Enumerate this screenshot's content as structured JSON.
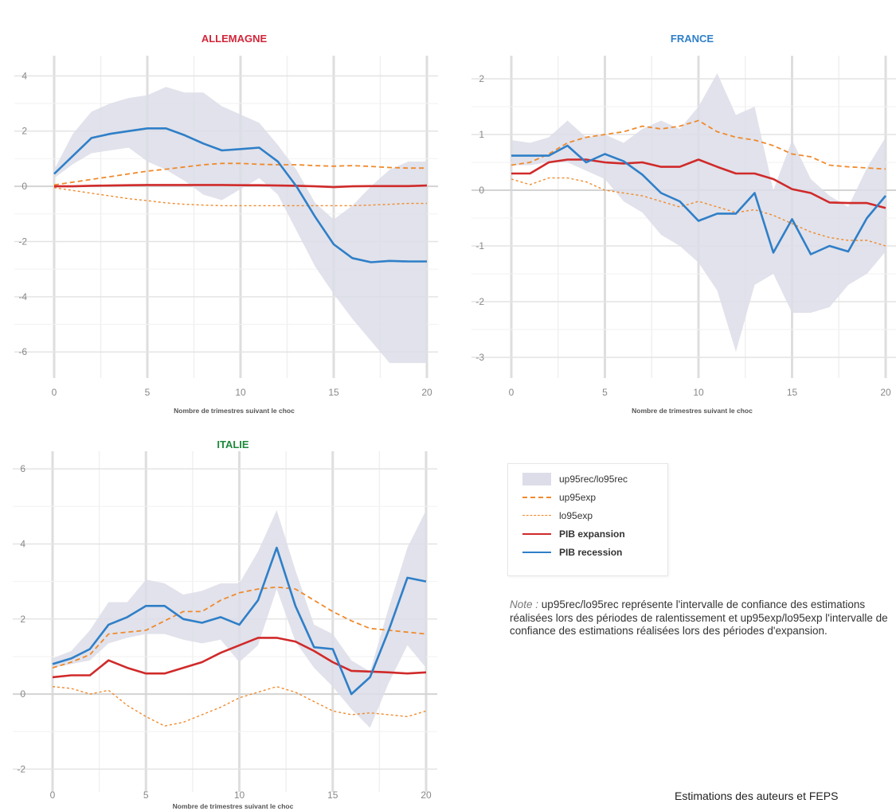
{
  "chart_data": [
    {
      "type": "line",
      "title": "ALLEMAGNE",
      "title_color": "#d2263a",
      "xlabel": "Nombre de trimestres suivant le choc",
      "ylabel": "",
      "x": [
        0,
        1,
        2,
        3,
        4,
        5,
        6,
        7,
        8,
        9,
        10,
        11,
        12,
        13,
        14,
        15,
        16,
        17,
        18,
        19,
        20
      ],
      "xlim": [
        0,
        20
      ],
      "ylim": [
        -6.8,
        4.5
      ],
      "xticks": [
        0,
        5,
        10,
        15,
        20
      ],
      "yticks": [
        -6,
        -4,
        -2,
        0,
        2,
        4
      ],
      "band": {
        "name": "up95rec/lo95rec",
        "upper": [
          0.6,
          1.9,
          2.7,
          3.0,
          3.2,
          3.3,
          3.6,
          3.4,
          3.4,
          2.9,
          2.6,
          2.3,
          1.5,
          0.6,
          -0.6,
          -1.2,
          -0.7,
          0.0,
          0.6,
          0.9,
          0.9
        ],
        "lower": [
          0.3,
          0.8,
          1.2,
          1.3,
          1.4,
          0.9,
          0.6,
          0.2,
          -0.3,
          -0.5,
          -0.1,
          0.3,
          -0.3,
          -1.6,
          -2.9,
          -3.9,
          -4.8,
          -5.6,
          -6.4,
          -6.4,
          -6.4
        ]
      },
      "series": [
        {
          "name": "up95exp",
          "values": [
            0.05,
            0.15,
            0.25,
            0.35,
            0.45,
            0.55,
            0.62,
            0.7,
            0.78,
            0.83,
            0.83,
            0.8,
            0.78,
            0.78,
            0.75,
            0.73,
            0.75,
            0.72,
            0.68,
            0.66,
            0.66
          ]
        },
        {
          "name": "lo95exp",
          "values": [
            -0.05,
            -0.15,
            -0.25,
            -0.35,
            -0.45,
            -0.52,
            -0.6,
            -0.65,
            -0.68,
            -0.7,
            -0.7,
            -0.7,
            -0.7,
            -0.7,
            -0.7,
            -0.7,
            -0.7,
            -0.68,
            -0.65,
            -0.62,
            -0.62
          ]
        },
        {
          "name": "PIB expansion",
          "values": [
            0.0,
            0.0,
            0.02,
            0.03,
            0.04,
            0.05,
            0.05,
            0.05,
            0.05,
            0.05,
            0.04,
            0.04,
            0.03,
            0.02,
            0.0,
            -0.03,
            0.0,
            0.01,
            0.01,
            0.01,
            0.03
          ]
        },
        {
          "name": "PIB recession",
          "values": [
            0.45,
            1.1,
            1.75,
            1.9,
            2.0,
            2.1,
            2.1,
            1.85,
            1.55,
            1.3,
            1.35,
            1.4,
            0.9,
            0.0,
            -1.1,
            -2.1,
            -2.6,
            -2.75,
            -2.7,
            -2.72,
            -2.72
          ]
        }
      ]
    },
    {
      "type": "line",
      "title": "FRANCE",
      "title_color": "#2f7fc8",
      "xlabel": "Nombre de trimestres suivant le choc",
      "ylabel": "",
      "x": [
        0,
        1,
        2,
        3,
        4,
        5,
        6,
        7,
        8,
        9,
        10,
        11,
        12,
        13,
        14,
        15,
        16,
        17,
        18,
        19,
        20
      ],
      "xlim": [
        0,
        20
      ],
      "ylim": [
        -3.3,
        2.3
      ],
      "xticks": [
        0,
        5,
        10,
        15,
        20
      ],
      "yticks": [
        -3,
        -2,
        -1,
        0,
        1,
        2
      ],
      "band": {
        "name": "up95rec/lo95rec",
        "upper": [
          0.9,
          0.85,
          0.95,
          1.25,
          0.95,
          1.0,
          0.85,
          1.1,
          1.25,
          1.1,
          1.5,
          2.1,
          1.35,
          1.5,
          0.0,
          0.9,
          0.2,
          -0.1,
          -0.3,
          0.4,
          0.95
        ],
        "lower": [
          0.45,
          0.45,
          0.5,
          0.5,
          0.35,
          0.2,
          -0.2,
          -0.4,
          -0.8,
          -1.0,
          -1.3,
          -1.8,
          -2.9,
          -1.7,
          -1.5,
          -2.2,
          -2.2,
          -2.1,
          -1.7,
          -1.5,
          -1.1
        ]
      },
      "series": [
        {
          "name": "up95exp",
          "values": [
            0.45,
            0.5,
            0.65,
            0.85,
            0.95,
            1.0,
            1.05,
            1.15,
            1.1,
            1.15,
            1.25,
            1.05,
            0.95,
            0.9,
            0.8,
            0.65,
            0.6,
            0.45,
            0.42,
            0.4,
            0.38
          ]
        },
        {
          "name": "lo95exp",
          "values": [
            0.2,
            0.1,
            0.22,
            0.22,
            0.15,
            0.0,
            -0.05,
            -0.1,
            -0.2,
            -0.3,
            -0.2,
            -0.3,
            -0.4,
            -0.35,
            -0.45,
            -0.6,
            -0.75,
            -0.85,
            -0.9,
            -0.9,
            -1.0
          ]
        },
        {
          "name": "PIB expansion",
          "values": [
            0.3,
            0.3,
            0.5,
            0.55,
            0.55,
            0.5,
            0.48,
            0.5,
            0.42,
            0.42,
            0.55,
            0.42,
            0.3,
            0.3,
            0.2,
            0.02,
            -0.05,
            -0.22,
            -0.23,
            -0.23,
            -0.32
          ]
        },
        {
          "name": "PIB recession",
          "values": [
            0.62,
            0.62,
            0.62,
            0.8,
            0.5,
            0.65,
            0.52,
            0.28,
            -0.05,
            -0.2,
            -0.55,
            -0.42,
            -0.42,
            -0.05,
            -1.12,
            -0.52,
            -1.15,
            -1.0,
            -1.1,
            -0.5,
            -0.1
          ]
        }
      ]
    },
    {
      "type": "line",
      "title": "ITALIE",
      "title_color": "#1e8a3c",
      "xlabel": "Nombre de trimestres suivant le choc",
      "ylabel": "",
      "x": [
        0,
        1,
        2,
        3,
        4,
        5,
        6,
        7,
        8,
        9,
        10,
        11,
        12,
        13,
        14,
        15,
        16,
        17,
        18,
        19,
        20
      ],
      "xlim": [
        0,
        20
      ],
      "ylim": [
        -2.5,
        6.3
      ],
      "xticks": [
        0,
        5,
        10,
        15,
        20
      ],
      "yticks": [
        -2,
        0,
        2,
        4,
        6
      ],
      "band": {
        "name": "up95rec/lo95rec",
        "upper": [
          0.95,
          1.15,
          1.7,
          2.45,
          2.45,
          3.05,
          2.95,
          2.65,
          2.75,
          2.95,
          2.95,
          3.8,
          4.9,
          3.3,
          1.85,
          1.6,
          0.9,
          0.6,
          2.3,
          3.9,
          4.9
        ],
        "lower": [
          0.7,
          0.8,
          0.9,
          1.35,
          1.5,
          1.6,
          1.6,
          1.45,
          1.35,
          1.45,
          0.85,
          1.3,
          2.8,
          1.4,
          0.7,
          0.2,
          -0.4,
          -0.9,
          0.3,
          1.3,
          0.7
        ]
      },
      "series": [
        {
          "name": "up95exp",
          "values": [
            0.7,
            0.85,
            1.05,
            1.6,
            1.65,
            1.7,
            1.95,
            2.2,
            2.2,
            2.5,
            2.7,
            2.8,
            2.85,
            2.8,
            2.5,
            2.2,
            1.95,
            1.75,
            1.7,
            1.65,
            1.6
          ]
        },
        {
          "name": "lo95exp",
          "values": [
            0.2,
            0.15,
            0.0,
            0.1,
            -0.3,
            -0.6,
            -0.85,
            -0.75,
            -0.55,
            -0.35,
            -0.1,
            0.05,
            0.2,
            0.05,
            -0.2,
            -0.45,
            -0.55,
            -0.5,
            -0.55,
            -0.6,
            -0.45
          ]
        },
        {
          "name": "PIB expansion",
          "values": [
            0.45,
            0.5,
            0.5,
            0.9,
            0.7,
            0.55,
            0.55,
            0.7,
            0.85,
            1.1,
            1.3,
            1.5,
            1.5,
            1.4,
            1.15,
            0.85,
            0.62,
            0.6,
            0.58,
            0.55,
            0.58
          ]
        },
        {
          "name": "PIB recession",
          "values": [
            0.8,
            0.95,
            1.2,
            1.85,
            2.05,
            2.35,
            2.35,
            2.0,
            1.9,
            2.05,
            1.85,
            2.5,
            3.9,
            2.35,
            1.25,
            1.2,
            0.0,
            0.45,
            1.7,
            3.1,
            3.0
          ]
        }
      ]
    }
  ],
  "legend": {
    "items": [
      {
        "label": "up95rec/lo95rec",
        "kind": "band",
        "color": "#dcdde8",
        "bold": false
      },
      {
        "label": "up95exp",
        "kind": "dashed",
        "color": "#f08a2c",
        "bold": false
      },
      {
        "label": "lo95exp",
        "kind": "dotted",
        "color": "#f08a2c",
        "bold": false
      },
      {
        "label": "PIB expansion",
        "kind": "solid",
        "color": "#d02a2a",
        "bold": true
      },
      {
        "label": "PIB recession",
        "kind": "solid",
        "color": "#2f7fc8",
        "bold": true
      }
    ]
  },
  "note": {
    "key": "Note :",
    "text": "up95rec/lo95rec représente l'intervalle de confiance des estimations réalisées lors des périodes de ralentissement et up95exp/lo95exp l'intervalle de confiance des estimations réalisées lors des périodes d'expansion."
  },
  "source": "Estimations des auteurs et FEPS"
}
